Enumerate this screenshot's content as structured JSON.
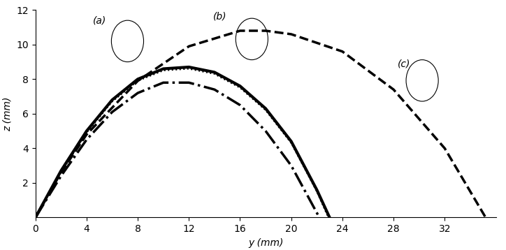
{
  "chart_data": {
    "type": "line",
    "x_label": "y (mm)",
    "y_label": "z (mm)",
    "annotations": [
      "(a)",
      "(b)",
      "(c)"
    ],
    "series": [
      {
        "color": "#000000",
        "line_style": "solid",
        "x": [
          0,
          2,
          4,
          6,
          8,
          10,
          12,
          14,
          16,
          18,
          20,
          22,
          23
        ],
        "values": [
          0,
          2.7,
          5.0,
          6.8,
          8.0,
          8.6,
          8.7,
          8.4,
          7.6,
          6.3,
          4.4,
          1.6,
          0
        ]
      },
      {
        "color": "#000000",
        "line_style": "dotted",
        "x": [
          0,
          2,
          4,
          6,
          8,
          10,
          12,
          14,
          16,
          18,
          20,
          22,
          22.9
        ],
        "values": [
          0,
          2.6,
          4.9,
          6.7,
          7.9,
          8.5,
          8.6,
          8.3,
          7.5,
          6.2,
          4.3,
          1.5,
          0
        ]
      },
      {
        "color": "#000000",
        "line_style": "dashdot",
        "x": [
          0,
          2,
          4,
          6,
          8,
          10,
          12,
          14,
          16,
          18,
          20,
          22.2
        ],
        "values": [
          0,
          2.4,
          4.5,
          6.1,
          7.2,
          7.8,
          7.8,
          7.4,
          6.5,
          5.0,
          3.0,
          0
        ]
      },
      {
        "color": "#000000",
        "line_style": "dashed",
        "x": [
          0,
          2,
          4,
          8,
          12,
          16,
          18,
          20,
          24,
          28,
          32,
          35.2
        ],
        "values": [
          0,
          2.6,
          4.8,
          7.9,
          9.9,
          10.8,
          10.8,
          10.6,
          9.6,
          7.4,
          4.0,
          0
        ]
      }
    ],
    "xlim": [
      0,
      36
    ],
    "xticks": [
      0,
      4,
      8,
      12,
      16,
      20,
      24,
      28,
      32
    ],
    "ylim": [
      0,
      12
    ],
    "yticks": [
      2,
      4,
      6,
      8,
      10,
      12
    ]
  }
}
